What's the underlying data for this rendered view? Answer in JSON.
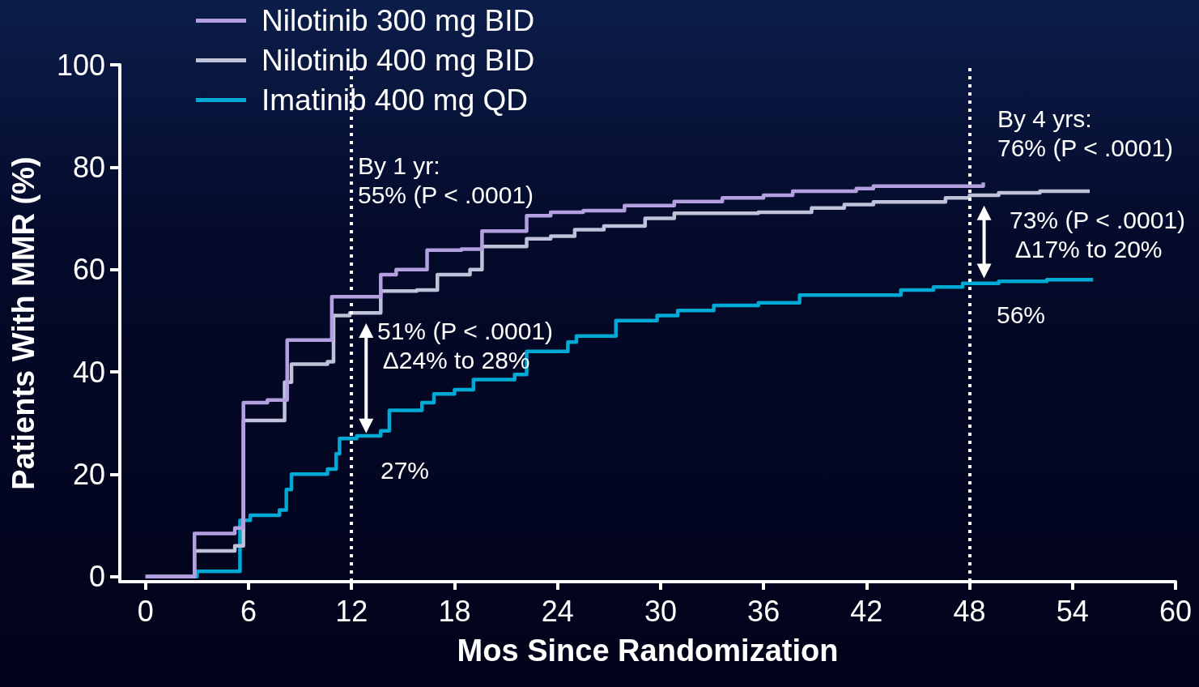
{
  "chart_data": {
    "type": "step",
    "xlabel": "Mos Since Randomization",
    "ylabel": "Patients With MMR (%)",
    "xlim": [
      -1.5,
      60
    ],
    "xticks": [
      0,
      6,
      12,
      18,
      24,
      30,
      36,
      42,
      48,
      54,
      60
    ],
    "ylim": [
      -1,
      100
    ],
    "yticks": [
      0,
      20,
      40,
      60,
      80,
      100
    ],
    "grid": false,
    "legend": "top left",
    "marker": "none",
    "line_style": "solid",
    "series": [
      {
        "name": "Nilotinib 300 mg BID",
        "color": "#b49fe0",
        "x": [
          0,
          2.85,
          5.2,
          5.7,
          7.1,
          8.25,
          10.85,
          13.7,
          14.6,
          16.4,
          18.4,
          19.6,
          22.2,
          23.6,
          25.5,
          27.9,
          30.8,
          33.6,
          36,
          37.7,
          41.4,
          42.4,
          48.8
        ],
        "values": [
          0,
          8.4,
          9.5,
          34,
          34.5,
          46.2,
          54.7,
          59,
          60,
          63.8,
          64,
          67.5,
          70.5,
          71.2,
          71.5,
          72.5,
          73.3,
          74,
          74.5,
          75.3,
          75.8,
          76.3,
          77
        ]
      },
      {
        "name": "Nilotinib 400 mg BID",
        "color": "#bfc2d8",
        "x": [
          0,
          2.85,
          5.2,
          5.7,
          8.1,
          8.5,
          10.6,
          10.95,
          11.9,
          13.7,
          15.8,
          17,
          18.9,
          19.6,
          22.2,
          23.6,
          25,
          26.7,
          29.1,
          30.8,
          35.7,
          38.8,
          40.7,
          42.4,
          46.6,
          48,
          49.7,
          52.1,
          55
        ],
        "values": [
          0,
          5,
          6,
          30.5,
          38,
          41.5,
          42,
          51,
          51.5,
          55.8,
          56,
          59,
          60,
          64.5,
          66,
          66.5,
          67.8,
          68.5,
          70,
          71,
          71.2,
          72,
          72.7,
          73.2,
          74,
          74.5,
          75,
          75.3,
          75.3
        ]
      },
      {
        "name": "Imatinib 400 mg QD",
        "color": "#00aad4",
        "x": [
          0,
          3,
          5.5,
          6.1,
          7.8,
          8.2,
          8.5,
          10.6,
          11.1,
          11.3,
          12.3,
          13.7,
          14.2,
          16.1,
          16.8,
          18,
          19.1,
          21.5,
          22.2,
          24.6,
          25.1,
          27.4,
          29.8,
          31,
          33.1,
          35.7,
          38.1,
          44,
          45.9,
          47.6,
          49.7,
          52.5,
          55.2
        ],
        "values": [
          0,
          1,
          11,
          12,
          13,
          17,
          20,
          21,
          24,
          27,
          27.5,
          28.5,
          32.5,
          34,
          35.7,
          36.5,
          38.5,
          39.5,
          44,
          45.8,
          47,
          50,
          51,
          52,
          53,
          53.5,
          55,
          56,
          56.6,
          57.3,
          57.7,
          58,
          58
        ]
      }
    ],
    "ref_lines": [
      {
        "axis": "x",
        "value": 12,
        "color": "#ffffff",
        "line_style": "dotted"
      },
      {
        "axis": "x",
        "value": 48,
        "color": "#ffffff",
        "line_style": "dotted"
      }
    ],
    "annotations": [
      "By 1 yr:\n55% (P < .0001)",
      "51% (P < .0001)\n Δ24% to 28%",
      "27%",
      "By 4 yrs:\n76% (P < .0001)",
      "73% (P < .0001)\n Δ17% to 20%",
      "56%"
    ]
  }
}
